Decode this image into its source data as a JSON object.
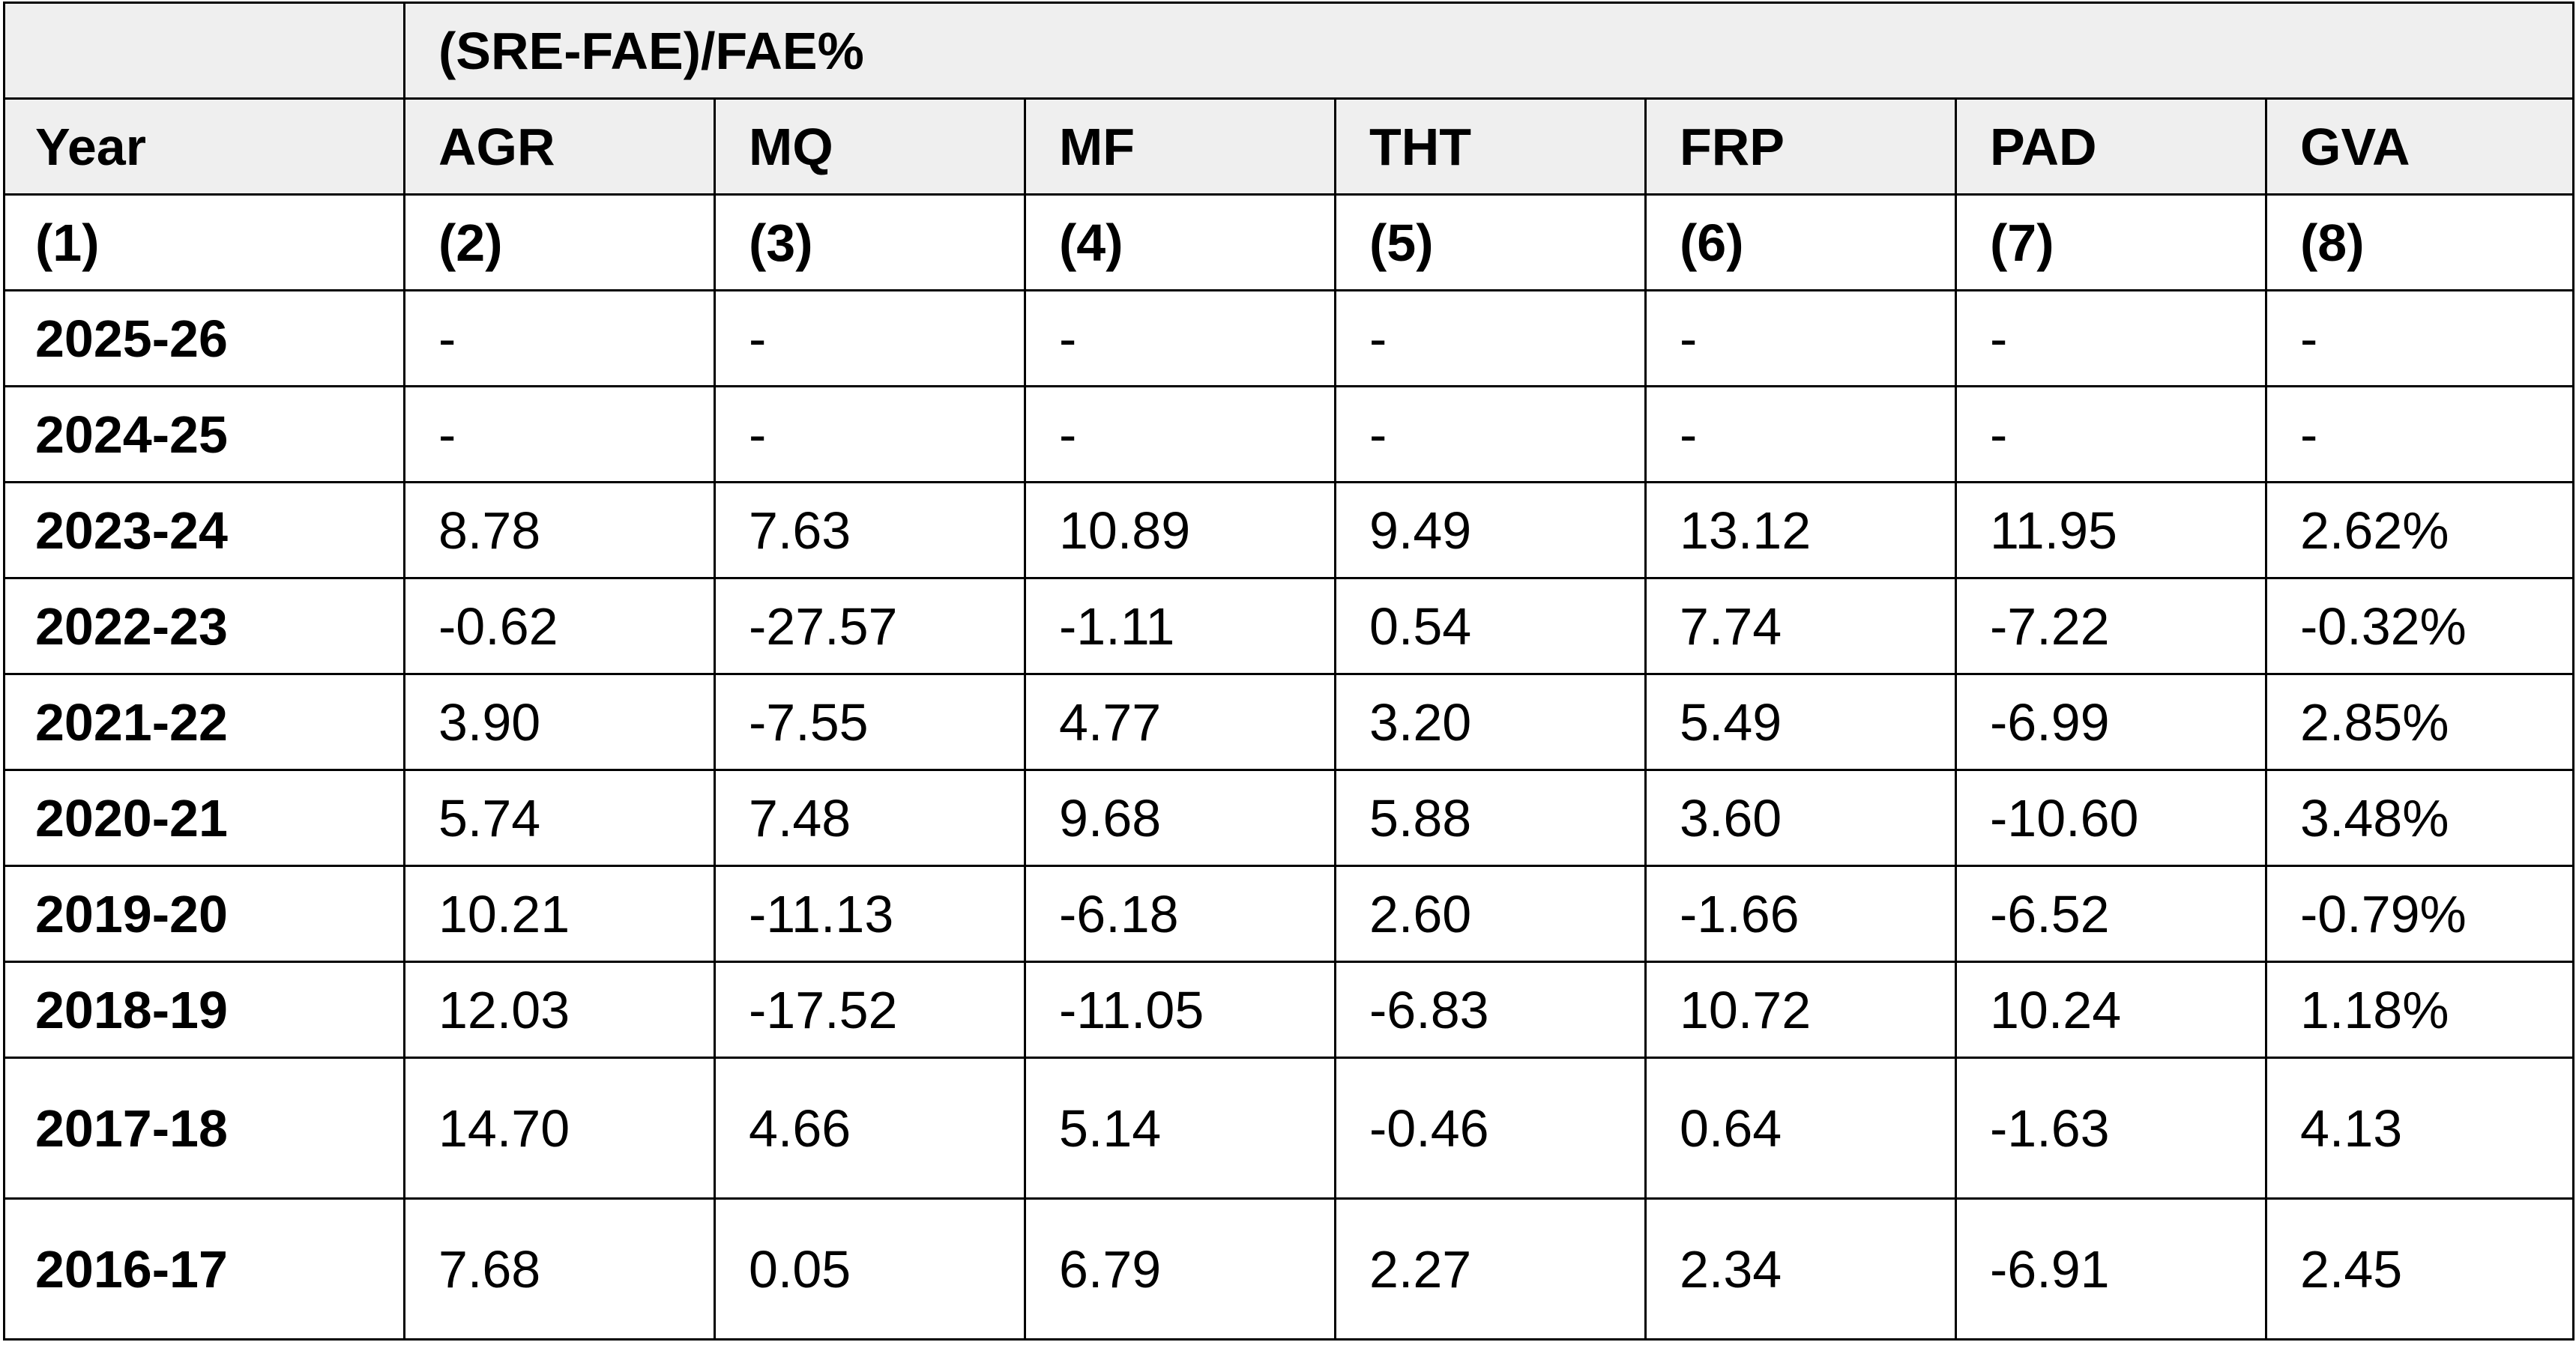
{
  "table": {
    "group_header": "(SRE-FAE)/FAE%",
    "columns": [
      "Year",
      "AGR",
      "MQ",
      "MF",
      "THT",
      "FRP",
      "PAD",
      "GVA"
    ],
    "column_numbers": [
      "(1)",
      "(2)",
      "(3)",
      "(4)",
      "(5)",
      "(6)",
      "(7)",
      "(8)"
    ],
    "rows": [
      {
        "year": "2025-26",
        "values": [
          "-",
          "-",
          "-",
          "-",
          "-",
          "-",
          "-"
        ]
      },
      {
        "year": "2024-25",
        "values": [
          "-",
          "-",
          "-",
          "-",
          "-",
          "-",
          "-"
        ]
      },
      {
        "year": "2023-24",
        "values": [
          "8.78",
          "7.63",
          "10.89",
          "9.49",
          "13.12",
          "11.95",
          "2.62%"
        ]
      },
      {
        "year": "2022-23",
        "values": [
          "-0.62",
          "-27.57",
          "-1.11",
          "0.54",
          "7.74",
          "-7.22",
          "-0.32%"
        ]
      },
      {
        "year": "2021-22",
        "values": [
          "3.90",
          "-7.55",
          "4.77",
          "3.20",
          "5.49",
          "-6.99",
          "2.85%"
        ]
      },
      {
        "year": "2020-21",
        "values": [
          "5.74",
          "7.48",
          "9.68",
          "5.88",
          "3.60",
          "-10.60",
          "3.48%"
        ]
      },
      {
        "year": "2019-20",
        "values": [
          "10.21",
          "-11.13",
          "-6.18",
          "2.60",
          "-1.66",
          "-6.52",
          "-0.79%"
        ]
      },
      {
        "year": "2018-19",
        "values": [
          "12.03",
          "-17.52",
          "-11.05",
          "-6.83",
          "10.72",
          "10.24",
          "1.18%"
        ]
      },
      {
        "year": "2017-18",
        "values": [
          "14.70",
          "4.66",
          "5.14",
          "-0.46",
          "0.64",
          "-1.63",
          "4.13"
        ]
      },
      {
        "year": "2016-17",
        "values": [
          "7.68",
          "0.05",
          "6.79",
          "2.27",
          "2.34",
          "-6.91",
          "2.45"
        ]
      }
    ]
  }
}
